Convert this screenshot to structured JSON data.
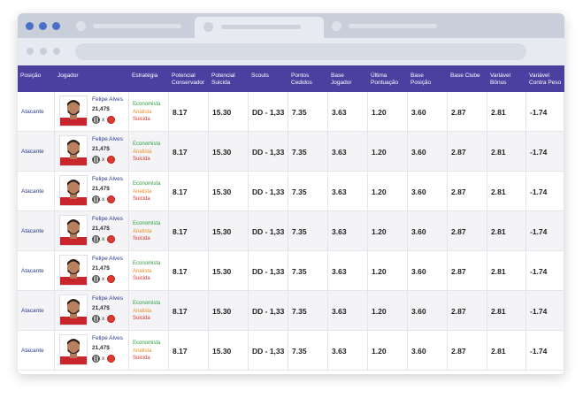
{
  "table": {
    "headers": [
      "Posição",
      "Jogador",
      "Estratégia",
      "Potencial Conservador",
      "Potencial Suicida",
      "Scouts",
      "Pontos Cedidos",
      "Base Jogador",
      "Última Pontuação",
      "Base Posição",
      "Base Clube",
      "Variável Bônus",
      "Variável Contra Peso"
    ],
    "rows": [
      {
        "position": "Atacante",
        "name": "Felipe Alves",
        "price": "21,47$",
        "vs": "x",
        "strategies": [
          "Economista",
          "Analista",
          "Suicida"
        ],
        "cells": [
          "8.17",
          "15.30",
          "DD - 1,33",
          "7.35",
          "3.63",
          "1.20",
          "3.60",
          "2.87",
          "2.81",
          "-1.74"
        ]
      },
      {
        "position": "Atacante",
        "name": "Felipe Alves",
        "price": "21,47$",
        "vs": "x",
        "strategies": [
          "Economista",
          "Analista",
          "Suicida"
        ],
        "cells": [
          "8.17",
          "15.30",
          "DD - 1,33",
          "7.35",
          "3.63",
          "1.20",
          "3.60",
          "2.87",
          "2.81",
          "-1.74"
        ]
      },
      {
        "position": "Atacante",
        "name": "Felipe Alves",
        "price": "21,47$",
        "vs": "x",
        "strategies": [
          "Economista",
          "Analista",
          "Suicida"
        ],
        "cells": [
          "8.17",
          "15.30",
          "DD - 1,33",
          "7.35",
          "3.63",
          "1.20",
          "3.60",
          "2.87",
          "2.81",
          "-1.74"
        ]
      },
      {
        "position": "Atacante",
        "name": "Felipe Alves",
        "price": "21,47$",
        "vs": "x",
        "strategies": [
          "Economista",
          "Analista",
          "Suicida"
        ],
        "cells": [
          "8.17",
          "15.30",
          "DD - 1,33",
          "7.35",
          "3.63",
          "1.20",
          "3.60",
          "2.87",
          "2.81",
          "-1.74"
        ]
      },
      {
        "position": "Atacante",
        "name": "Felipe Alves",
        "price": "21,47$",
        "vs": "x",
        "strategies": [
          "Economista",
          "Analista",
          "Suicida"
        ],
        "cells": [
          "8.17",
          "15.30",
          "DD - 1,33",
          "7.35",
          "3.63",
          "1.20",
          "3.60",
          "2.87",
          "2.81",
          "-1.74"
        ]
      },
      {
        "position": "Atacante",
        "name": "Felipe Alves",
        "price": "21,47$",
        "vs": "x",
        "strategies": [
          "Economista",
          "Analista",
          "Suicida"
        ],
        "cells": [
          "8.17",
          "15.30",
          "DD - 1,33",
          "7.35",
          "3.63",
          "1.20",
          "3.60",
          "2.87",
          "2.81",
          "-1.74"
        ]
      },
      {
        "position": "Atacante",
        "name": "Felipe Alves",
        "price": "21,47$",
        "vs": "x",
        "strategies": [
          "Economista",
          "Analista",
          "Suicida"
        ],
        "cells": [
          "8.17",
          "15.30",
          "DD - 1,33",
          "7.35",
          "3.63",
          "1.20",
          "3.60",
          "2.87",
          "2.81",
          "-1.74"
        ]
      }
    ]
  }
}
